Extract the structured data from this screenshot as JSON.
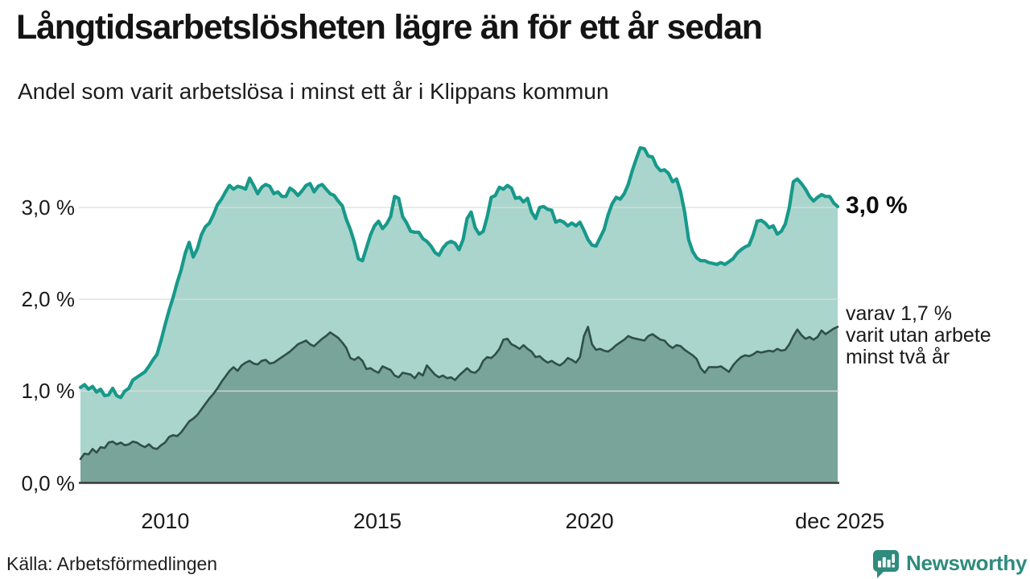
{
  "header": {
    "title": "Långtidsarbetslösheten lägre än för ett år sedan",
    "subtitle": "Andel som varit arbetslösa i minst ett år i Klippans kommun"
  },
  "annotations": {
    "end_value_main": "3,0 %",
    "end_note_lines": [
      "varav 1,7 %",
      "varit utan arbete",
      "minst två år"
    ]
  },
  "footer": {
    "source": "Källa: Arbetsförmedlingen",
    "brand": "Newsworthy"
  },
  "colors": {
    "line_total": "#17998a",
    "fill_total": "#a9d5cc",
    "line_two_years": "#2f4f48",
    "fill_two_years": "#78a499",
    "gridline": "#dcdcdc",
    "axis": "#3a3a3a",
    "brand_teal": "#2e8b7e"
  },
  "chart_data": {
    "type": "area",
    "title": "Långtidsarbetslösheten lägre än för ett år sedan",
    "subtitle": "Andel som varit arbetslösa i minst ett år i Klippans kommun",
    "unit": "%",
    "grid": true,
    "x_range": [
      2008.0,
      2025.85
    ],
    "y_range": [
      0,
      3.75
    ],
    "x_ticks": [
      {
        "label": "2010",
        "t": 2010
      },
      {
        "label": "2015",
        "t": 2015
      },
      {
        "label": "2020",
        "t": 2020
      },
      {
        "label": "dec 2025",
        "t": 2025.9
      }
    ],
    "y_ticks": [
      {
        "label": "0,0 %",
        "v": 0
      },
      {
        "label": "1,0 %",
        "v": 1
      },
      {
        "label": "2,0 %",
        "v": 2
      },
      {
        "label": "3,0 %",
        "v": 3
      }
    ],
    "series": [
      {
        "id": "unemployed_min_one_year",
        "end_label": "3,0 %",
        "last_value": 3.0,
        "values": [
          1.04,
          1.07,
          1.02,
          1.05,
          0.99,
          1.02,
          0.95,
          0.96,
          1.03,
          0.95,
          0.93,
          1.0,
          1.03,
          1.12,
          1.15,
          1.18,
          1.21,
          1.27,
          1.34,
          1.4,
          1.55,
          1.72,
          1.88,
          2.02,
          2.18,
          2.32,
          2.5,
          2.62,
          2.46,
          2.55,
          2.7,
          2.79,
          2.83,
          2.92,
          3.03,
          3.09,
          3.17,
          3.24,
          3.2,
          3.23,
          3.22,
          3.2,
          3.32,
          3.24,
          3.15,
          3.22,
          3.25,
          3.23,
          3.15,
          3.17,
          3.12,
          3.12,
          3.21,
          3.18,
          3.13,
          3.18,
          3.24,
          3.26,
          3.17,
          3.23,
          3.25,
          3.2,
          3.15,
          3.13,
          3.07,
          3.02,
          2.87,
          2.76,
          2.62,
          2.44,
          2.42,
          2.56,
          2.7,
          2.8,
          2.85,
          2.77,
          2.82,
          2.9,
          3.12,
          3.1,
          2.9,
          2.83,
          2.74,
          2.73,
          2.73,
          2.66,
          2.63,
          2.58,
          2.51,
          2.48,
          2.56,
          2.61,
          2.63,
          2.61,
          2.54,
          2.65,
          2.88,
          2.95,
          2.78,
          2.71,
          2.74,
          2.9,
          3.11,
          3.13,
          3.22,
          3.2,
          3.24,
          3.21,
          3.1,
          3.11,
          3.06,
          3.1,
          2.95,
          2.88,
          3.0,
          3.01,
          2.98,
          2.97,
          2.84,
          2.86,
          2.84,
          2.8,
          2.83,
          2.8,
          2.84,
          2.75,
          2.65,
          2.59,
          2.58,
          2.67,
          2.76,
          2.92,
          3.04,
          3.11,
          3.09,
          3.15,
          3.25,
          3.4,
          3.53,
          3.65,
          3.64,
          3.56,
          3.55,
          3.45,
          3.4,
          3.41,
          3.37,
          3.28,
          3.31,
          3.17,
          2.95,
          2.65,
          2.52,
          2.45,
          2.42,
          2.42,
          2.4,
          2.39,
          2.38,
          2.4,
          2.38,
          2.41,
          2.44,
          2.5,
          2.54,
          2.57,
          2.59,
          2.7,
          2.85,
          2.86,
          2.83,
          2.78,
          2.8,
          2.71,
          2.74,
          2.82,
          3.0,
          3.28,
          3.31,
          3.26,
          3.2,
          3.12,
          3.07,
          3.11,
          3.14,
          3.12,
          3.12,
          3.05,
          3.01
        ]
      },
      {
        "id": "unemployed_min_two_years",
        "end_label": "varav 1,7 % varit utan arbete minst två år",
        "last_value": 1.7,
        "values": [
          0.26,
          0.32,
          0.31,
          0.37,
          0.33,
          0.39,
          0.38,
          0.44,
          0.45,
          0.42,
          0.44,
          0.41,
          0.42,
          0.45,
          0.44,
          0.41,
          0.39,
          0.42,
          0.38,
          0.37,
          0.41,
          0.44,
          0.5,
          0.52,
          0.51,
          0.55,
          0.61,
          0.67,
          0.7,
          0.74,
          0.8,
          0.86,
          0.92,
          0.97,
          1.03,
          1.1,
          1.16,
          1.22,
          1.26,
          1.22,
          1.28,
          1.31,
          1.33,
          1.3,
          1.29,
          1.33,
          1.34,
          1.3,
          1.31,
          1.34,
          1.37,
          1.4,
          1.43,
          1.47,
          1.51,
          1.53,
          1.55,
          1.51,
          1.49,
          1.53,
          1.57,
          1.6,
          1.64,
          1.61,
          1.58,
          1.53,
          1.47,
          1.36,
          1.34,
          1.37,
          1.33,
          1.24,
          1.25,
          1.22,
          1.2,
          1.27,
          1.25,
          1.23,
          1.17,
          1.15,
          1.2,
          1.19,
          1.18,
          1.14,
          1.2,
          1.17,
          1.28,
          1.23,
          1.18,
          1.15,
          1.17,
          1.14,
          1.15,
          1.12,
          1.17,
          1.21,
          1.25,
          1.21,
          1.2,
          1.24,
          1.33,
          1.37,
          1.36,
          1.4,
          1.46,
          1.56,
          1.57,
          1.51,
          1.49,
          1.46,
          1.5,
          1.46,
          1.43,
          1.37,
          1.38,
          1.34,
          1.31,
          1.33,
          1.3,
          1.28,
          1.31,
          1.36,
          1.34,
          1.31,
          1.37,
          1.6,
          1.7,
          1.51,
          1.45,
          1.46,
          1.44,
          1.43,
          1.46,
          1.5,
          1.53,
          1.56,
          1.6,
          1.58,
          1.57,
          1.56,
          1.55,
          1.6,
          1.62,
          1.59,
          1.56,
          1.55,
          1.5,
          1.47,
          1.5,
          1.49,
          1.45,
          1.42,
          1.39,
          1.35,
          1.25,
          1.2,
          1.26,
          1.26,
          1.26,
          1.27,
          1.24,
          1.21,
          1.28,
          1.33,
          1.37,
          1.39,
          1.38,
          1.4,
          1.43,
          1.42,
          1.43,
          1.44,
          1.43,
          1.46,
          1.44,
          1.45,
          1.51,
          1.6,
          1.67,
          1.61,
          1.57,
          1.59,
          1.56,
          1.59,
          1.66,
          1.62,
          1.65,
          1.68,
          1.7
        ]
      }
    ]
  }
}
